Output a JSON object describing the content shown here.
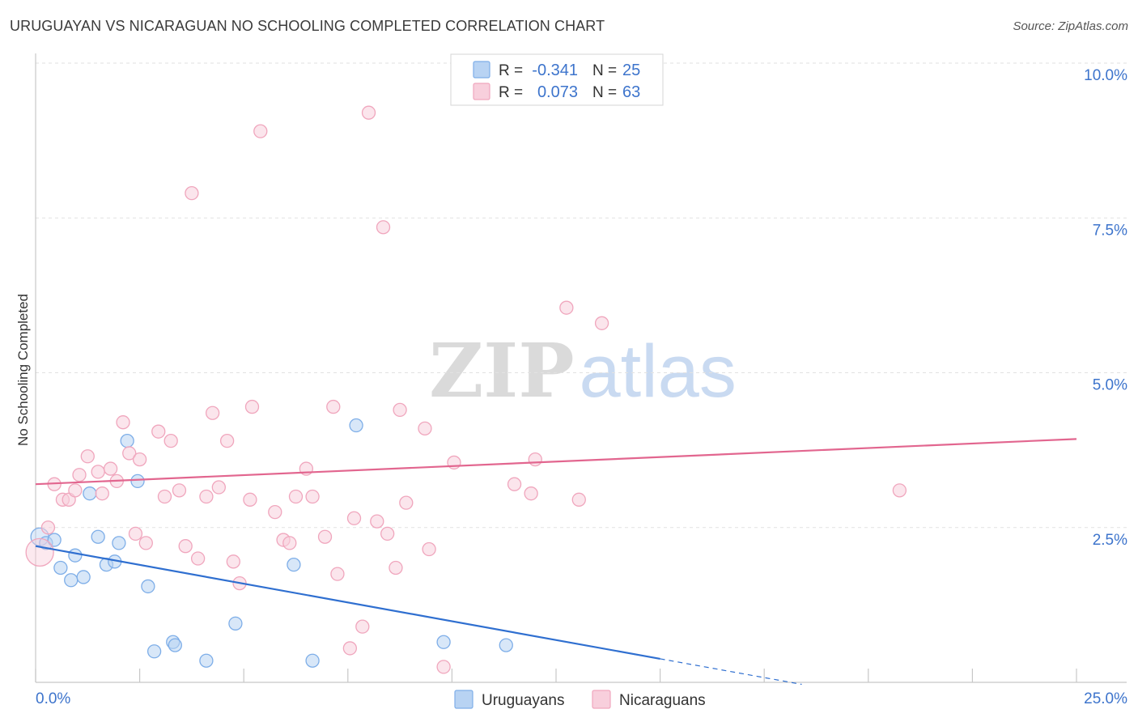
{
  "chart_data": {
    "type": "scatter",
    "title": "URUGUAYAN VS NICARAGUAN NO SCHOOLING COMPLETED CORRELATION CHART",
    "source": "Source: ZipAtlas.com",
    "xlabel": "",
    "ylabel": "No Schooling Completed",
    "xlim": [
      0,
      25
    ],
    "ylim": [
      0,
      10
    ],
    "x_ticks": [
      0,
      2.5,
      5,
      7.5,
      10,
      12.5,
      15,
      17.5,
      20,
      22.5,
      25
    ],
    "x_tick_labels": [
      {
        "value": 0,
        "label": "0.0%"
      },
      {
        "value": 25,
        "label": "25.0%"
      }
    ],
    "y_ticks": [
      {
        "value": 2.5,
        "label": "2.5%"
      },
      {
        "value": 5,
        "label": "5.0%"
      },
      {
        "value": 7.5,
        "label": "7.5%"
      },
      {
        "value": 10,
        "label": "10.0%"
      }
    ],
    "grid": true,
    "legend_position": "top-center",
    "watermark": {
      "bold": "ZIP",
      "light": "atlas"
    },
    "series": [
      {
        "name": "Uruguayans",
        "color": "#7eaee8",
        "fill": "#b8d3f3",
        "line_color": "#2f6fd0",
        "r": "-0.341",
        "n": "25",
        "r_label": "R =",
        "n_label": "N =",
        "points": [
          [
            0.1,
            2.35
          ],
          [
            0.25,
            2.25
          ],
          [
            0.45,
            2.3
          ],
          [
            0.6,
            1.85
          ],
          [
            0.85,
            1.65
          ],
          [
            0.95,
            2.05
          ],
          [
            1.15,
            1.7
          ],
          [
            1.3,
            3.05
          ],
          [
            1.5,
            2.35
          ],
          [
            1.7,
            1.9
          ],
          [
            1.9,
            1.95
          ],
          [
            2.0,
            2.25
          ],
          [
            2.2,
            3.9
          ],
          [
            2.45,
            3.25
          ],
          [
            2.7,
            1.55
          ],
          [
            2.85,
            0.5
          ],
          [
            3.3,
            0.65
          ],
          [
            3.35,
            0.6
          ],
          [
            4.1,
            0.35
          ],
          [
            4.8,
            0.95
          ],
          [
            6.2,
            1.9
          ],
          [
            6.65,
            0.35
          ],
          [
            7.7,
            4.15
          ],
          [
            9.8,
            0.65
          ],
          [
            11.3,
            0.6
          ]
        ],
        "trend": {
          "x0": 0,
          "y0": 2.2,
          "x1": 15,
          "y1": 0.38,
          "dash_to_x": 18.4
        }
      },
      {
        "name": "Nicaraguans",
        "color": "#f0a6bd",
        "fill": "#f8cfdc",
        "line_color": "#e2668f",
        "r": "0.073",
        "n": "63",
        "r_label": "R =",
        "n_label": "N =",
        "points": [
          [
            0.1,
            2.1
          ],
          [
            0.3,
            2.5
          ],
          [
            0.45,
            3.2
          ],
          [
            0.65,
            2.95
          ],
          [
            0.8,
            2.95
          ],
          [
            0.95,
            3.1
          ],
          [
            1.05,
            3.35
          ],
          [
            1.25,
            3.65
          ],
          [
            1.5,
            3.4
          ],
          [
            1.6,
            3.05
          ],
          [
            1.8,
            3.45
          ],
          [
            1.95,
            3.25
          ],
          [
            2.1,
            4.2
          ],
          [
            2.25,
            3.7
          ],
          [
            2.4,
            2.4
          ],
          [
            2.5,
            3.6
          ],
          [
            2.65,
            2.25
          ],
          [
            2.95,
            4.05
          ],
          [
            3.1,
            3.0
          ],
          [
            3.25,
            3.9
          ],
          [
            3.45,
            3.1
          ],
          [
            3.6,
            2.2
          ],
          [
            3.75,
            7.9
          ],
          [
            3.9,
            2.0
          ],
          [
            4.1,
            3.0
          ],
          [
            4.25,
            4.35
          ],
          [
            4.4,
            3.15
          ],
          [
            4.6,
            3.9
          ],
          [
            4.75,
            1.95
          ],
          [
            4.9,
            1.6
          ],
          [
            5.15,
            2.95
          ],
          [
            5.2,
            4.45
          ],
          [
            5.4,
            8.9
          ],
          [
            5.75,
            2.75
          ],
          [
            5.95,
            2.3
          ],
          [
            6.1,
            2.25
          ],
          [
            6.25,
            3.0
          ],
          [
            6.5,
            3.45
          ],
          [
            6.65,
            3.0
          ],
          [
            6.95,
            2.35
          ],
          [
            7.15,
            4.45
          ],
          [
            7.25,
            1.75
          ],
          [
            7.55,
            0.55
          ],
          [
            7.65,
            2.65
          ],
          [
            7.85,
            0.9
          ],
          [
            8.0,
            9.2
          ],
          [
            8.2,
            2.6
          ],
          [
            8.35,
            7.35
          ],
          [
            8.45,
            2.4
          ],
          [
            8.65,
            1.85
          ],
          [
            8.75,
            4.4
          ],
          [
            8.9,
            2.9
          ],
          [
            9.35,
            4.1
          ],
          [
            9.45,
            2.15
          ],
          [
            9.8,
            0.25
          ],
          [
            10.05,
            3.55
          ],
          [
            11.5,
            3.2
          ],
          [
            11.9,
            3.05
          ],
          [
            12.0,
            3.6
          ],
          [
            12.75,
            6.05
          ],
          [
            13.05,
            2.95
          ],
          [
            13.6,
            5.8
          ],
          [
            20.75,
            3.1
          ]
        ],
        "trend": {
          "x0": 0,
          "y0": 3.2,
          "x1": 25,
          "y1": 3.93
        }
      }
    ]
  }
}
